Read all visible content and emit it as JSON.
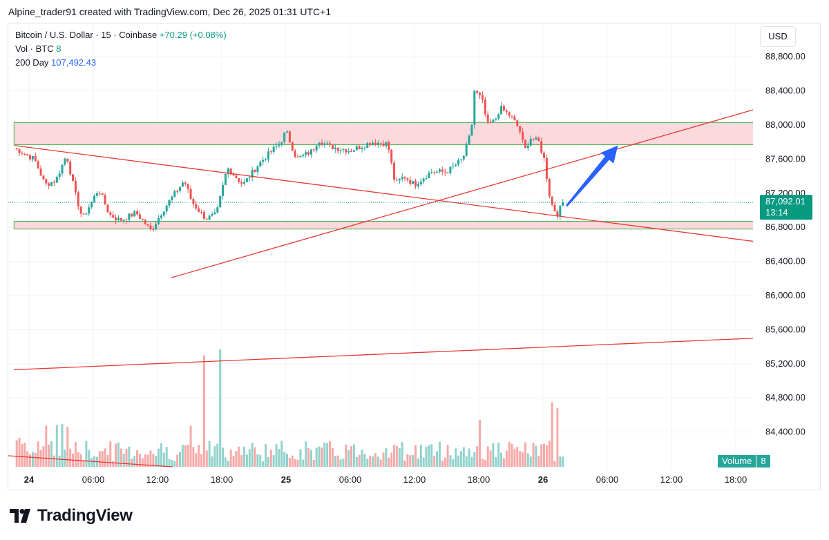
{
  "header": {
    "attribution": "Alpine_trader91 created with TradingView.com, Dec 26, 2025 01:31 UTC+1"
  },
  "legend": {
    "symbol": "Bitcoin / U.S. Dollar · 15 · Coinbase",
    "change": "+70.29 (+0.08%)",
    "volume_label": "Vol · BTC",
    "volume_value": "8",
    "ma_label": "200 Day",
    "ma_value": "107,492.43"
  },
  "currency_button": "USD",
  "price_badge": {
    "price": "87,092.01",
    "countdown": "13:14"
  },
  "volume_badge": {
    "label": "Volume",
    "value": "8"
  },
  "brand": {
    "logo_text": "TradingView"
  },
  "colors": {
    "up": "#26a69a",
    "down": "#ef5350",
    "zone_fill": "#fcd9dc",
    "zone_border": "#4caf50",
    "trendline": "#e53935",
    "arrow": "#2962ff",
    "price_badge": "#089981"
  },
  "chart_data": {
    "type": "candlestick",
    "symbol": "BTC/USD",
    "interval": "15",
    "y_ticks": [
      88800,
      88400,
      88000,
      87600,
      87200,
      86800,
      86400,
      86000,
      85600,
      85200,
      84800,
      84400
    ],
    "y_tick_labels": [
      "88,800.00",
      "88,400.00",
      "88,000.00",
      "87,600.00",
      "87,200.00",
      "86,800.00",
      "86,400.00",
      "86,000.00",
      "85,600.00",
      "85,200.00",
      "84,800.00",
      "84,400.00"
    ],
    "x_ticks": [
      {
        "hour": 0,
        "label": "24",
        "bold": true
      },
      {
        "hour": 6,
        "label": "06:00"
      },
      {
        "hour": 12,
        "label": "12:00"
      },
      {
        "hour": 18,
        "label": "18:00"
      },
      {
        "hour": 24,
        "label": "25",
        "bold": true
      },
      {
        "hour": 30,
        "label": "06:00"
      },
      {
        "hour": 36,
        "label": "12:00"
      },
      {
        "hour": 42,
        "label": "18:00"
      },
      {
        "hour": 48,
        "label": "26",
        "bold": true
      },
      {
        "hour": 54,
        "label": "06:00"
      },
      {
        "hour": 60,
        "label": "12:00"
      },
      {
        "hour": 66,
        "label": "18:00"
      }
    ],
    "last_price": 87092.01,
    "anchors": [
      {
        "hour": -1.4,
        "price": 87730
      },
      {
        "hour": 0.5,
        "price": 87600
      },
      {
        "hour": 1.5,
        "price": 87300
      },
      {
        "hour": 2.5,
        "price": 87350
      },
      {
        "hour": 3.5,
        "price": 87650
      },
      {
        "hour": 4.3,
        "price": 87200
      },
      {
        "hour": 5.0,
        "price": 86900
      },
      {
        "hour": 6.5,
        "price": 87250
      },
      {
        "hour": 7.5,
        "price": 86950
      },
      {
        "hour": 8.5,
        "price": 86880
      },
      {
        "hour": 10.0,
        "price": 86970
      },
      {
        "hour": 11.4,
        "price": 86760
      },
      {
        "hour": 12.5,
        "price": 87000
      },
      {
        "hour": 14.5,
        "price": 87350
      },
      {
        "hour": 15.2,
        "price": 87100
      },
      {
        "hour": 16.5,
        "price": 86900
      },
      {
        "hour": 17.5,
        "price": 86950
      },
      {
        "hour": 18.5,
        "price": 87500
      },
      {
        "hour": 20.0,
        "price": 87300
      },
      {
        "hour": 21.5,
        "price": 87550
      },
      {
        "hour": 23.5,
        "price": 87800
      },
      {
        "hour": 24.0,
        "price": 87930
      },
      {
        "hour": 25.0,
        "price": 87600
      },
      {
        "hour": 26.5,
        "price": 87700
      },
      {
        "hour": 27.0,
        "price": 87830
      },
      {
        "hour": 28.0,
        "price": 87750
      },
      {
        "hour": 30.0,
        "price": 87700
      },
      {
        "hour": 32.0,
        "price": 87800
      },
      {
        "hour": 33.5,
        "price": 87780
      },
      {
        "hour": 34.2,
        "price": 87300
      },
      {
        "hour": 35.0,
        "price": 87400
      },
      {
        "hour": 36.0,
        "price": 87300
      },
      {
        "hour": 37.5,
        "price": 87450
      },
      {
        "hour": 39.0,
        "price": 87450
      },
      {
        "hour": 40.5,
        "price": 87600
      },
      {
        "hour": 41.3,
        "price": 87930
      },
      {
        "hour": 41.6,
        "price": 88400
      },
      {
        "hour": 42.3,
        "price": 88300
      },
      {
        "hour": 42.8,
        "price": 88000
      },
      {
        "hour": 43.5,
        "price": 88050
      },
      {
        "hour": 44.0,
        "price": 88200
      },
      {
        "hour": 45.0,
        "price": 88100
      },
      {
        "hour": 45.8,
        "price": 87950
      },
      {
        "hour": 46.3,
        "price": 87700
      },
      {
        "hour": 46.8,
        "price": 87850
      },
      {
        "hour": 47.6,
        "price": 87800
      },
      {
        "hour": 48.1,
        "price": 87600
      },
      {
        "hour": 48.7,
        "price": 87100
      },
      {
        "hour": 49.3,
        "price": 86950
      },
      {
        "hour": 49.9,
        "price": 87090
      }
    ],
    "support_zone": {
      "from_hour": -1.4,
      "to_hour": 69.0,
      "low": 86780,
      "high": 86870
    },
    "resistance_zone": {
      "from_hour": -1.4,
      "to_hour": 69.0,
      "low": 87770,
      "high": 88030
    },
    "trendlines": [
      {
        "from": {
          "hour": -1.4,
          "price": 87760
        },
        "to": {
          "hour": 68.0,
          "price": 86630
        }
      },
      {
        "from": {
          "hour": 13.3,
          "price": 86210
        },
        "to": {
          "hour": 79.0,
          "price": 88590
        }
      },
      {
        "from": {
          "hour": -1.4,
          "price": 85130
        },
        "to": {
          "hour": 79.0,
          "price": 85560
        }
      }
    ],
    "projection_arrow": {
      "from": {
        "hour": 50.2,
        "price": 87050
      },
      "to": {
        "hour": 55.0,
        "price": 87760
      }
    }
  }
}
